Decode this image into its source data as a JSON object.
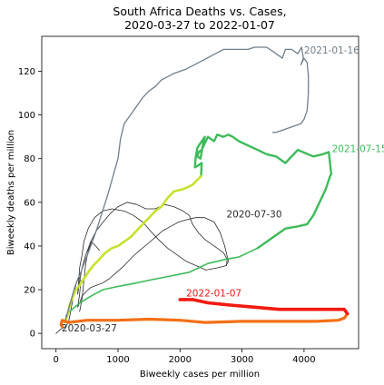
{
  "chart_data": {
    "type": "line",
    "title_line1": "South Africa Deaths vs. Cases,",
    "title_line2": "2020-03-27 to 2022-01-07",
    "xlabel": "Biweekly cases per million",
    "ylabel": "Biweekly deaths per million",
    "xlim": [
      -230,
      4880
    ],
    "ylim": [
      -7,
      136
    ],
    "xticks": [
      0,
      1000,
      2000,
      3000,
      4000
    ],
    "yticks": [
      0,
      20,
      40,
      60,
      80,
      100,
      120
    ],
    "grid": false,
    "colors": {
      "gray": "#6f7f8a",
      "dark": "#2b2b2b",
      "green_light": "#8ed35a",
      "green": "#3dbb5a",
      "yellow_green": "#c6e22e",
      "orange": "#f36f16",
      "red": "#f21a10"
    },
    "segments": [
      {
        "color": "#2b2b2b",
        "width": 0.8,
        "points": [
          [
            0,
            0
          ],
          [
            80,
            2
          ],
          [
            150,
            3
          ],
          [
            200,
            5
          ],
          [
            230,
            9
          ],
          [
            260,
            14
          ],
          [
            290,
            19
          ],
          [
            330,
            23
          ],
          [
            370,
            26
          ],
          [
            400,
            24
          ],
          [
            380,
            18
          ],
          [
            350,
            12
          ],
          [
            380,
            14
          ],
          [
            420,
            17
          ],
          [
            480,
            19
          ],
          [
            560,
            21
          ],
          [
            650,
            22
          ],
          [
            750,
            23
          ],
          [
            860,
            25
          ],
          [
            980,
            28
          ],
          [
            1100,
            31
          ],
          [
            1230,
            35
          ],
          [
            1350,
            38
          ],
          [
            1480,
            41
          ],
          [
            1600,
            44
          ],
          [
            1720,
            47
          ],
          [
            1850,
            49
          ],
          [
            1980,
            51
          ],
          [
            2100,
            52
          ],
          [
            2250,
            53
          ],
          [
            2400,
            53
          ],
          [
            2550,
            51
          ],
          [
            2650,
            46
          ],
          [
            2720,
            40
          ],
          [
            2780,
            33
          ],
          [
            2740,
            31
          ],
          [
            2600,
            30
          ],
          [
            2420,
            29
          ],
          [
            2260,
            31
          ],
          [
            2100,
            33
          ],
          [
            1950,
            36
          ],
          [
            1800,
            39
          ],
          [
            1650,
            43
          ],
          [
            1520,
            47
          ],
          [
            1400,
            51
          ],
          [
            1250,
            54
          ],
          [
            1100,
            56
          ],
          [
            900,
            57
          ],
          [
            750,
            56
          ],
          [
            620,
            53
          ],
          [
            520,
            48
          ],
          [
            450,
            42
          ],
          [
            420,
            36
          ],
          [
            380,
            30
          ],
          [
            360,
            22
          ],
          [
            350,
            18
          ]
        ]
      },
      {
        "color": "#2b2b2b",
        "width": 0.8,
        "points": [
          [
            350,
            18
          ],
          [
            380,
            24
          ],
          [
            420,
            30
          ],
          [
            480,
            36
          ],
          [
            560,
            42
          ],
          [
            650,
            47
          ],
          [
            760,
            51
          ],
          [
            880,
            55
          ],
          [
            1000,
            58
          ],
          [
            1150,
            60
          ],
          [
            1300,
            59
          ],
          [
            1450,
            57
          ],
          [
            1600,
            57
          ],
          [
            1750,
            59
          ],
          [
            1900,
            58
          ],
          [
            2050,
            56
          ],
          [
            2150,
            54
          ],
          [
            2200,
            50
          ],
          [
            2300,
            46
          ],
          [
            2400,
            43
          ],
          [
            2550,
            40
          ],
          [
            2700,
            37
          ],
          [
            2760,
            34
          ],
          [
            2750,
            31
          ]
        ]
      },
      {
        "color": "#2b2b2b",
        "width": 0.8,
        "points": [
          [
            380,
            10
          ],
          [
            420,
            16
          ],
          [
            450,
            24
          ],
          [
            480,
            32
          ],
          [
            520,
            38
          ],
          [
            570,
            42
          ],
          [
            640,
            40
          ],
          [
            700,
            38
          ]
        ]
      },
      {
        "color": "#3dbb5a",
        "width": 1.6,
        "points": [
          [
            160,
            8
          ],
          [
            220,
            10
          ],
          [
            300,
            12
          ],
          [
            390,
            14
          ],
          [
            500,
            16
          ],
          [
            620,
            18
          ],
          [
            760,
            20
          ],
          [
            920,
            21
          ],
          [
            1100,
            22
          ],
          [
            1280,
            23
          ],
          [
            1450,
            24
          ],
          [
            1620,
            25
          ],
          [
            1800,
            26
          ],
          [
            1980,
            27
          ],
          [
            2150,
            28
          ],
          [
            2300,
            30
          ],
          [
            2450,
            32
          ],
          [
            2600,
            33
          ],
          [
            2750,
            34
          ],
          [
            2950,
            35
          ],
          [
            3100,
            37
          ],
          [
            3250,
            39
          ]
        ]
      },
      {
        "color": "#3dbb5a",
        "width": 2.4,
        "points": [
          [
            3250,
            39
          ],
          [
            3400,
            42
          ],
          [
            3550,
            45
          ],
          [
            3700,
            48
          ],
          [
            3900,
            49
          ],
          [
            4050,
            50
          ],
          [
            4150,
            54
          ],
          [
            4250,
            60
          ],
          [
            4350,
            66
          ],
          [
            4420,
            72
          ],
          [
            4440,
            73
          ],
          [
            4400,
            83
          ],
          [
            4300,
            82
          ],
          [
            4150,
            81
          ],
          [
            3900,
            84
          ],
          [
            3700,
            78
          ],
          [
            3550,
            81
          ],
          [
            3400,
            82
          ],
          [
            3250,
            84
          ],
          [
            3100,
            86
          ],
          [
            2950,
            88
          ],
          [
            2850,
            90
          ],
          [
            2780,
            91
          ],
          [
            2700,
            90
          ],
          [
            2600,
            91
          ],
          [
            2550,
            88
          ],
          [
            2450,
            90
          ],
          [
            2400,
            87
          ],
          [
            2350,
            84
          ],
          [
            2300,
            83
          ],
          [
            2280,
            81
          ],
          [
            2330,
            80
          ],
          [
            2380,
            88
          ],
          [
            2400,
            90
          ],
          [
            2280,
            85
          ],
          [
            2250,
            80
          ],
          [
            2240,
            76
          ],
          [
            2300,
            77
          ],
          [
            2350,
            78
          ],
          [
            2340,
            72
          ]
        ]
      },
      {
        "color": "#c6e22e",
        "width": 2.6,
        "points": [
          [
            2340,
            72
          ],
          [
            2200,
            68
          ],
          [
            2050,
            66
          ],
          [
            1900,
            65
          ],
          [
            1800,
            62
          ],
          [
            1700,
            58
          ],
          [
            1600,
            56
          ],
          [
            1500,
            53
          ],
          [
            1400,
            50
          ],
          [
            1300,
            47
          ],
          [
            1200,
            44
          ],
          [
            1100,
            42
          ],
          [
            1000,
            40
          ],
          [
            900,
            39
          ],
          [
            800,
            37
          ],
          [
            700,
            34
          ],
          [
            600,
            31
          ],
          [
            520,
            28
          ],
          [
            450,
            25
          ],
          [
            380,
            22
          ],
          [
            320,
            20
          ],
          [
            260,
            16
          ],
          [
            220,
            13
          ],
          [
            200,
            10
          ],
          [
            180,
            8
          ],
          [
            160,
            6
          ],
          [
            140,
            5
          ]
        ]
      },
      {
        "color": "#6f7f8a",
        "width": 1.3,
        "points": [
          [
            140,
            5
          ],
          [
            190,
            10
          ],
          [
            230,
            14
          ],
          [
            260,
            17
          ],
          [
            300,
            21
          ],
          [
            340,
            24
          ],
          [
            400,
            28
          ],
          [
            480,
            34
          ],
          [
            560,
            40
          ],
          [
            650,
            47
          ],
          [
            740,
            55
          ],
          [
            830,
            63
          ],
          [
            920,
            72
          ],
          [
            1000,
            80
          ],
          [
            1040,
            89
          ],
          [
            1100,
            96
          ],
          [
            1200,
            100
          ],
          [
            1300,
            104
          ],
          [
            1400,
            108
          ],
          [
            1500,
            111
          ],
          [
            1600,
            113
          ],
          [
            1700,
            116
          ],
          [
            1900,
            119
          ],
          [
            2100,
            121
          ],
          [
            2300,
            124
          ],
          [
            2500,
            127
          ],
          [
            2700,
            130
          ],
          [
            2950,
            130
          ],
          [
            3100,
            130
          ],
          [
            3200,
            131
          ],
          [
            3400,
            131
          ],
          [
            3550,
            128
          ],
          [
            3650,
            126
          ],
          [
            3700,
            130
          ],
          [
            3800,
            130
          ],
          [
            3900,
            128
          ],
          [
            3960,
            131
          ],
          [
            3990,
            126
          ],
          [
            3950,
            123
          ],
          [
            4000,
            126
          ],
          [
            4050,
            124
          ],
          [
            4070,
            118
          ],
          [
            4070,
            110
          ],
          [
            4050,
            102
          ],
          [
            4000,
            98
          ],
          [
            3950,
            96
          ],
          [
            3850,
            95
          ],
          [
            3750,
            94
          ],
          [
            3650,
            93
          ],
          [
            3550,
            92
          ],
          [
            3500,
            92
          ]
        ]
      },
      {
        "color": "#f36f16",
        "width": 3.2,
        "points": [
          [
            100,
            3
          ],
          [
            80,
            4
          ],
          [
            100,
            6
          ],
          [
            200,
            5
          ],
          [
            500,
            6
          ],
          [
            1000,
            6
          ],
          [
            1500,
            6.5
          ],
          [
            2000,
            6
          ],
          [
            2400,
            5
          ],
          [
            3000,
            5.5
          ],
          [
            3600,
            5.5
          ],
          [
            4200,
            5.5
          ],
          [
            4550,
            6
          ],
          [
            4650,
            7
          ],
          [
            4700,
            9
          ]
        ]
      },
      {
        "color": "#f21a10",
        "width": 3.6,
        "points": [
          [
            4700,
            9
          ],
          [
            4650,
            11
          ],
          [
            4400,
            11
          ],
          [
            4000,
            11
          ],
          [
            3600,
            11
          ],
          [
            3200,
            12
          ],
          [
            2800,
            13
          ],
          [
            2450,
            14
          ],
          [
            2200,
            15.5
          ],
          [
            2000,
            15.5
          ]
        ]
      }
    ],
    "annotations": [
      {
        "text": "2021-01-16",
        "x": 4000,
        "y": 128,
        "color": "#6f7f8a"
      },
      {
        "text": "2021-07-15",
        "x": 4450,
        "y": 83,
        "color": "#3dbb5a"
      },
      {
        "text": "2020-07-30",
        "x": 2750,
        "y": 53,
        "color": "#2b2b2b"
      },
      {
        "text": "2022-01-07",
        "x": 2100,
        "y": 17,
        "color": "#f21a10"
      },
      {
        "text": "2020-03-27",
        "x": 90,
        "y": 1,
        "color": "#2b2b2b"
      }
    ]
  }
}
